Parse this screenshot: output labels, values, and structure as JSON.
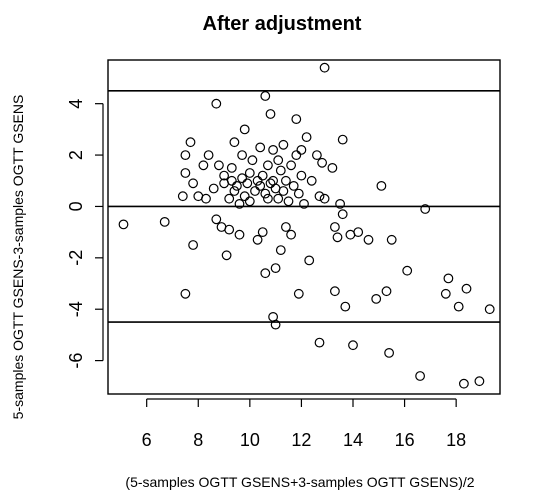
{
  "chart_data": {
    "type": "scatter",
    "title": "After adjustment",
    "xlabel": "(5-samples OGTT GSENS+3-samples OGTT GSENS)/2",
    "ylabel": "5-samples OGTT GSENS-3-samples OGTT GSENS",
    "xlim": [
      4.5,
      19.7
    ],
    "ylim": [
      -7.3,
      5.7
    ],
    "x_ticks": [
      6,
      8,
      10,
      12,
      14,
      16,
      18
    ],
    "y_ticks": [
      -6,
      -4,
      -2,
      0,
      2,
      4
    ],
    "x_tick_labels": [
      "6",
      "8",
      "10",
      "12",
      "14",
      "16",
      "18"
    ],
    "y_tick_labels": [
      "-6",
      "-4",
      "-2",
      "0",
      "2",
      "4"
    ],
    "reference_lines": [
      4.5,
      0.0,
      -4.5
    ],
    "grid": false,
    "legend": "none",
    "points": [
      [
        5.1,
        -0.7
      ],
      [
        6.7,
        -0.6
      ],
      [
        7.5,
        -3.4
      ],
      [
        7.4,
        0.4
      ],
      [
        7.5,
        2.0
      ],
      [
        7.5,
        1.3
      ],
      [
        7.7,
        2.5
      ],
      [
        7.8,
        0.9
      ],
      [
        7.8,
        -1.5
      ],
      [
        8.0,
        0.4
      ],
      [
        8.2,
        1.6
      ],
      [
        8.3,
        0.3
      ],
      [
        8.4,
        2.0
      ],
      [
        8.6,
        0.7
      ],
      [
        8.7,
        -0.5
      ],
      [
        8.7,
        4.0
      ],
      [
        8.8,
        1.6
      ],
      [
        8.9,
        -0.8
      ],
      [
        9.0,
        0.9
      ],
      [
        9.0,
        1.2
      ],
      [
        9.1,
        -1.9
      ],
      [
        9.2,
        0.3
      ],
      [
        9.2,
        -0.9
      ],
      [
        9.3,
        1.0
      ],
      [
        9.3,
        1.5
      ],
      [
        9.4,
        0.6
      ],
      [
        9.4,
        2.5
      ],
      [
        9.5,
        0.8
      ],
      [
        9.6,
        0.1
      ],
      [
        9.6,
        -1.1
      ],
      [
        9.7,
        1.1
      ],
      [
        9.7,
        2.0
      ],
      [
        9.8,
        0.4
      ],
      [
        9.8,
        3.0
      ],
      [
        9.9,
        0.9
      ],
      [
        10.0,
        1.3
      ],
      [
        10.0,
        0.2
      ],
      [
        10.1,
        1.8
      ],
      [
        10.2,
        0.6
      ],
      [
        10.3,
        -1.3
      ],
      [
        10.3,
        1.0
      ],
      [
        10.4,
        2.3
      ],
      [
        10.4,
        0.8
      ],
      [
        10.5,
        -1.0
      ],
      [
        10.5,
        1.2
      ],
      [
        10.6,
        -2.6
      ],
      [
        10.6,
        0.5
      ],
      [
        10.6,
        4.3
      ],
      [
        10.7,
        0.3
      ],
      [
        10.7,
        1.6
      ],
      [
        10.8,
        3.6
      ],
      [
        10.8,
        0.9
      ],
      [
        10.9,
        2.2
      ],
      [
        10.9,
        -4.3
      ],
      [
        10.9,
        1.0
      ],
      [
        11.0,
        -2.4
      ],
      [
        11.0,
        0.7
      ],
      [
        11.0,
        -4.6
      ],
      [
        11.1,
        1.8
      ],
      [
        11.1,
        0.3
      ],
      [
        11.2,
        -1.7
      ],
      [
        11.2,
        1.4
      ],
      [
        11.3,
        0.6
      ],
      [
        11.3,
        2.4
      ],
      [
        11.4,
        -0.8
      ],
      [
        11.4,
        1.0
      ],
      [
        11.5,
        0.2
      ],
      [
        11.6,
        -1.1
      ],
      [
        11.6,
        1.6
      ],
      [
        11.7,
        0.8
      ],
      [
        11.8,
        2.0
      ],
      [
        11.8,
        3.4
      ],
      [
        11.9,
        -3.4
      ],
      [
        11.9,
        0.5
      ],
      [
        12.0,
        1.2
      ],
      [
        12.0,
        2.2
      ],
      [
        12.1,
        0.1
      ],
      [
        12.2,
        2.7
      ],
      [
        12.3,
        -2.1
      ],
      [
        12.4,
        1.0
      ],
      [
        12.6,
        2.0
      ],
      [
        12.7,
        0.4
      ],
      [
        12.7,
        -5.3
      ],
      [
        12.8,
        1.7
      ],
      [
        12.9,
        5.4
      ],
      [
        12.9,
        0.3
      ],
      [
        13.2,
        1.5
      ],
      [
        13.3,
        -0.8
      ],
      [
        13.3,
        -3.3
      ],
      [
        13.4,
        -1.2
      ],
      [
        13.5,
        0.1
      ],
      [
        13.6,
        2.6
      ],
      [
        13.6,
        -0.3
      ],
      [
        13.7,
        -3.9
      ],
      [
        13.9,
        -1.1
      ],
      [
        14.0,
        -5.4
      ],
      [
        14.2,
        -1.0
      ],
      [
        14.6,
        -1.3
      ],
      [
        14.9,
        -3.6
      ],
      [
        15.1,
        0.8
      ],
      [
        15.3,
        -3.3
      ],
      [
        15.4,
        -5.7
      ],
      [
        15.5,
        -1.3
      ],
      [
        16.1,
        -2.5
      ],
      [
        16.6,
        -6.6
      ],
      [
        16.8,
        -0.1
      ],
      [
        17.6,
        -3.4
      ],
      [
        17.7,
        -2.8
      ],
      [
        18.1,
        -3.9
      ],
      [
        18.3,
        -6.9
      ],
      [
        18.4,
        -3.2
      ],
      [
        18.9,
        -6.8
      ],
      [
        19.3,
        -4.0
      ]
    ]
  }
}
